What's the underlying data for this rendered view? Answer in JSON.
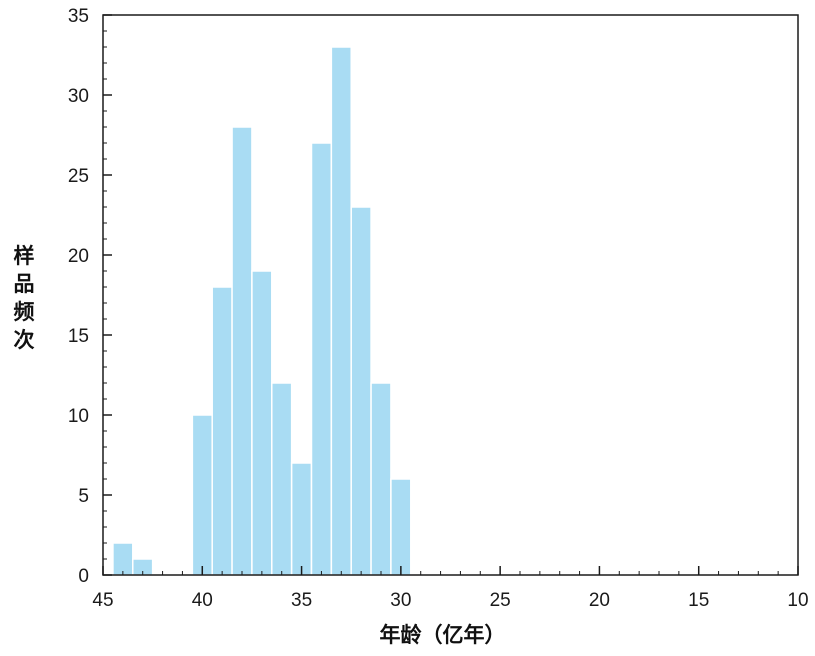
{
  "chart_data": {
    "type": "bar",
    "xlabel": "年龄（亿年）",
    "ylabel": "样品频次",
    "xlim": [
      45,
      10
    ],
    "ylim": [
      0,
      35
    ],
    "x_reversed": true,
    "bin_width": 1,
    "x_ticks": [
      45,
      40,
      35,
      30,
      25,
      20,
      15,
      10
    ],
    "x_tick_labels": [
      "45",
      "40",
      "35",
      "30",
      "25",
      "20",
      "15",
      "10"
    ],
    "y_ticks": [
      0,
      5,
      10,
      15,
      20,
      25,
      30,
      35
    ],
    "y_tick_labels": [
      "0",
      "5",
      "10",
      "15",
      "20",
      "25",
      "30",
      "35"
    ],
    "y_minor_step": 1,
    "bars": [
      {
        "x0": 44.5,
        "x1": 43.5,
        "value": 2
      },
      {
        "x0": 43.5,
        "x1": 42.5,
        "value": 1
      },
      {
        "x0": 40.5,
        "x1": 39.5,
        "value": 10
      },
      {
        "x0": 39.5,
        "x1": 38.5,
        "value": 18
      },
      {
        "x0": 38.5,
        "x1": 37.5,
        "value": 28
      },
      {
        "x0": 37.5,
        "x1": 36.5,
        "value": 19
      },
      {
        "x0": 36.5,
        "x1": 35.5,
        "value": 12
      },
      {
        "x0": 35.5,
        "x1": 34.5,
        "value": 7
      },
      {
        "x0": 34.5,
        "x1": 33.5,
        "value": 27
      },
      {
        "x0": 33.5,
        "x1": 32.5,
        "value": 33
      },
      {
        "x0": 32.5,
        "x1": 31.5,
        "value": 23
      },
      {
        "x0": 31.5,
        "x1": 30.5,
        "value": 12
      },
      {
        "x0": 30.5,
        "x1": 29.5,
        "value": 6
      }
    ],
    "grid": false,
    "legend": "none",
    "colors": {
      "bar": "#a9dcf3",
      "bar_edge": "#ffffff",
      "axis": "#1a1a1a"
    }
  }
}
